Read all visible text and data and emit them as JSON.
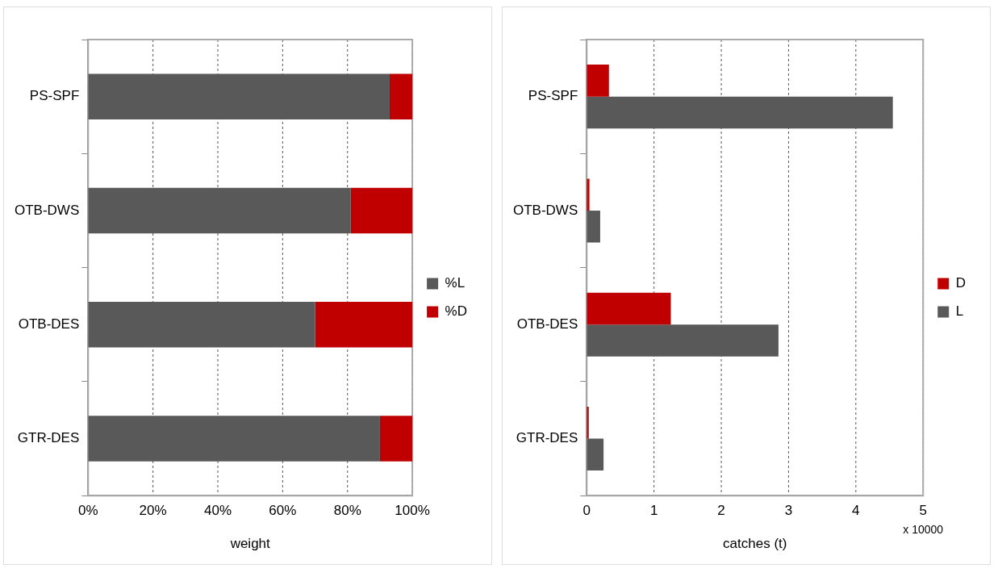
{
  "chart_data": [
    {
      "type": "bar",
      "orientation": "horizontal",
      "stacked": true,
      "xlabel": "weight",
      "categories": [
        "PS-SPF",
        "OTB-DWS",
        "OTB-DES",
        "GTR-DES"
      ],
      "series": [
        {
          "name": "%L",
          "color": "#595959",
          "values": [
            93,
            81,
            70,
            90
          ]
        },
        {
          "name": "%D",
          "color": "#c00000",
          "values": [
            7,
            19,
            30,
            10
          ]
        }
      ],
      "xlim": [
        0,
        100
      ],
      "xticks": [
        {
          "value": 0,
          "label": "0%"
        },
        {
          "value": 20,
          "label": "20%"
        },
        {
          "value": 40,
          "label": "40%"
        },
        {
          "value": 60,
          "label": "60%"
        },
        {
          "value": 80,
          "label": "80%"
        },
        {
          "value": 100,
          "label": "100%"
        }
      ],
      "grid": "x",
      "legend": "right"
    },
    {
      "type": "bar",
      "orientation": "horizontal",
      "xlabel": "catches (t)",
      "categories": [
        "PS-SPF",
        "OTB-DWS",
        "OTB-DES",
        "GTR-DES"
      ],
      "series": [
        {
          "name": "D",
          "color": "#c00000",
          "values": [
            0.33,
            0.04,
            1.25,
            0.03
          ]
        },
        {
          "name": "L",
          "color": "#595959",
          "values": [
            4.55,
            0.2,
            2.85,
            0.25
          ]
        }
      ],
      "xlim": [
        0,
        5
      ],
      "xticks": [
        0,
        1,
        2,
        3,
        4,
        5
      ],
      "annotations": [
        "x 10000"
      ],
      "grid": "x",
      "legend": "right"
    }
  ]
}
